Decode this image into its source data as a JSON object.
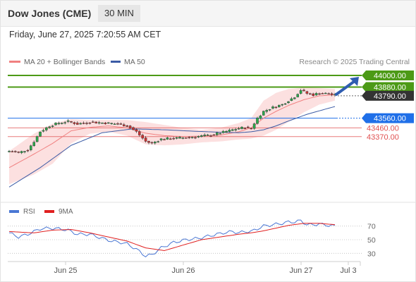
{
  "header": {
    "title": "Dow Jones (CME)",
    "timeframe": "30 MIN",
    "datetime": "Friday, June 27, 2025 7:20:55 AM CET"
  },
  "watermark": "Research © 2025 Trading Central",
  "legend": {
    "ma20_label": "MA 20 + Bollinger Bands",
    "ma50_label": "MA 50",
    "rsi_label": "RSI",
    "ma9_label": "9MA"
  },
  "colors": {
    "up": "#2aa84a",
    "down": "#cc3333",
    "ma20": "#f08080",
    "ma50": "#3b5ba5",
    "resistance": "#4c9a16",
    "pivot": "#1f6fe8",
    "support": "#e05050",
    "current": "#333333",
    "rsi": "#4a77d4",
    "rsi_ma": "#e02020",
    "arrow": "#2f5db0"
  },
  "chart_data": [
    {
      "type": "candlestick",
      "x_ticks": [
        "Jun 25",
        "Jun 26",
        "Jun 27",
        "Jul 3"
      ],
      "ylim": [
        42700,
        44080
      ],
      "candles": [],
      "levels": [
        {
          "label": "44000.00",
          "value": 44000,
          "kind": "resistance"
        },
        {
          "label": "43880.00",
          "value": 43880,
          "kind": "resistance"
        },
        {
          "label": "43790.00",
          "value": 43790,
          "kind": "current"
        },
        {
          "label": "43560.00",
          "value": 43560,
          "kind": "pivot"
        },
        {
          "label": "43460.00",
          "value": 43460,
          "kind": "support"
        },
        {
          "label": "43370.00",
          "value": 43370,
          "kind": "support"
        }
      ],
      "anchors": {
        "close": [
          [
            0,
            43220
          ],
          [
            3,
            43205
          ],
          [
            6,
            43235
          ],
          [
            8,
            43320
          ],
          [
            10,
            43420
          ],
          [
            13,
            43480
          ],
          [
            16,
            43510
          ],
          [
            19,
            43525
          ],
          [
            22,
            43500
          ],
          [
            26,
            43520
          ],
          [
            30,
            43512
          ],
          [
            33,
            43505
          ],
          [
            36,
            43495
          ],
          [
            38,
            43480
          ],
          [
            41,
            43420
          ],
          [
            44,
            43320
          ],
          [
            46,
            43300
          ],
          [
            49,
            43345
          ],
          [
            53,
            43352
          ],
          [
            57,
            43360
          ],
          [
            61,
            43372
          ],
          [
            65,
            43385
          ],
          [
            69,
            43415
          ],
          [
            72,
            43440
          ],
          [
            74,
            43455
          ],
          [
            76,
            43465
          ],
          [
            78,
            43455
          ],
          [
            80,
            43560
          ],
          [
            82,
            43630
          ],
          [
            85,
            43670
          ],
          [
            88,
            43700
          ],
          [
            90,
            43740
          ],
          [
            92,
            43780
          ],
          [
            94,
            43850
          ],
          [
            96,
            43815
          ],
          [
            98,
            43800
          ],
          [
            100,
            43820
          ],
          [
            103,
            43810
          ],
          [
            105,
            43795
          ]
        ],
        "ma20": [
          [
            0,
            43050
          ],
          [
            8,
            43190
          ],
          [
            14,
            43300
          ],
          [
            20,
            43430
          ],
          [
            26,
            43465
          ],
          [
            32,
            43480
          ],
          [
            38,
            43460
          ],
          [
            44,
            43405
          ],
          [
            50,
            43380
          ],
          [
            56,
            43370
          ],
          [
            62,
            43375
          ],
          [
            68,
            43385
          ],
          [
            74,
            43420
          ],
          [
            78,
            43460
          ],
          [
            82,
            43560
          ],
          [
            86,
            43630
          ],
          [
            90,
            43690
          ],
          [
            95,
            43750
          ],
          [
            100,
            43790
          ],
          [
            105,
            43800
          ]
        ],
        "bb_upper": [
          [
            0,
            43220
          ],
          [
            8,
            43400
          ],
          [
            14,
            43505
          ],
          [
            20,
            43550
          ],
          [
            26,
            43540
          ],
          [
            32,
            43540
          ],
          [
            38,
            43540
          ],
          [
            44,
            43520
          ],
          [
            50,
            43490
          ],
          [
            56,
            43460
          ],
          [
            62,
            43440
          ],
          [
            68,
            43460
          ],
          [
            74,
            43510
          ],
          [
            78,
            43560
          ],
          [
            82,
            43740
          ],
          [
            86,
            43820
          ],
          [
            90,
            43860
          ],
          [
            95,
            43875
          ],
          [
            100,
            43870
          ],
          [
            105,
            43860
          ]
        ],
        "bb_lower": [
          [
            0,
            42880
          ],
          [
            8,
            42980
          ],
          [
            14,
            43090
          ],
          [
            20,
            43300
          ],
          [
            26,
            43400
          ],
          [
            32,
            43420
          ],
          [
            38,
            43380
          ],
          [
            44,
            43290
          ],
          [
            50,
            43280
          ],
          [
            56,
            43290
          ],
          [
            62,
            43310
          ],
          [
            68,
            43320
          ],
          [
            74,
            43340
          ],
          [
            78,
            43350
          ],
          [
            82,
            43380
          ],
          [
            86,
            43440
          ],
          [
            90,
            43520
          ],
          [
            95,
            43620
          ],
          [
            100,
            43700
          ],
          [
            105,
            43740
          ]
        ],
        "ma50": [
          [
            0,
            42850
          ],
          [
            10,
            43050
          ],
          [
            20,
            43280
          ],
          [
            30,
            43410
          ],
          [
            40,
            43450
          ],
          [
            50,
            43440
          ],
          [
            60,
            43425
          ],
          [
            68,
            43415
          ],
          [
            74,
            43410
          ],
          [
            78,
            43420
          ],
          [
            82,
            43440
          ],
          [
            86,
            43480
          ],
          [
            90,
            43530
          ],
          [
            96,
            43600
          ],
          [
            105,
            43680
          ]
        ]
      }
    },
    {
      "type": "line",
      "name": "RSI",
      "ylim": [
        20,
        80
      ],
      "y_ticks": [
        70,
        50,
        30
      ],
      "series": [
        {
          "name": "RSI",
          "anchors": [
            [
              0,
              60
            ],
            [
              3,
              54
            ],
            [
              6,
              58
            ],
            [
              8,
              62
            ],
            [
              10,
              66
            ],
            [
              13,
              67
            ],
            [
              16,
              66
            ],
            [
              19,
              64
            ],
            [
              22,
              58
            ],
            [
              26,
              58
            ],
            [
              30,
              52
            ],
            [
              33,
              48
            ],
            [
              36,
              46
            ],
            [
              38,
              44
            ],
            [
              41,
              36
            ],
            [
              44,
              26
            ],
            [
              46,
              28
            ],
            [
              49,
              38
            ],
            [
              53,
              46
            ],
            [
              57,
              50
            ],
            [
              61,
              52
            ],
            [
              65,
              56
            ],
            [
              69,
              60
            ],
            [
              72,
              62
            ],
            [
              74,
              60
            ],
            [
              76,
              62
            ],
            [
              78,
              62
            ],
            [
              80,
              66
            ],
            [
              82,
              70
            ],
            [
              85,
              72
            ],
            [
              88,
              74
            ],
            [
              90,
              76
            ],
            [
              92,
              76
            ],
            [
              94,
              78
            ],
            [
              96,
              72
            ],
            [
              98,
              72
            ],
            [
              100,
              73
            ],
            [
              103,
              71
            ],
            [
              105,
              70
            ]
          ]
        },
        {
          "name": "9MA",
          "anchors": [
            [
              0,
              62
            ],
            [
              8,
              60
            ],
            [
              14,
              64
            ],
            [
              20,
              65
            ],
            [
              26,
              60
            ],
            [
              32,
              54
            ],
            [
              38,
              48
            ],
            [
              44,
              38
            ],
            [
              50,
              34
            ],
            [
              56,
              42
            ],
            [
              62,
              50
            ],
            [
              68,
              54
            ],
            [
              74,
              58
            ],
            [
              78,
              60
            ],
            [
              82,
              63
            ],
            [
              86,
              67
            ],
            [
              90,
              71
            ],
            [
              95,
              74
            ],
            [
              100,
              74
            ],
            [
              105,
              72
            ]
          ]
        }
      ]
    }
  ]
}
